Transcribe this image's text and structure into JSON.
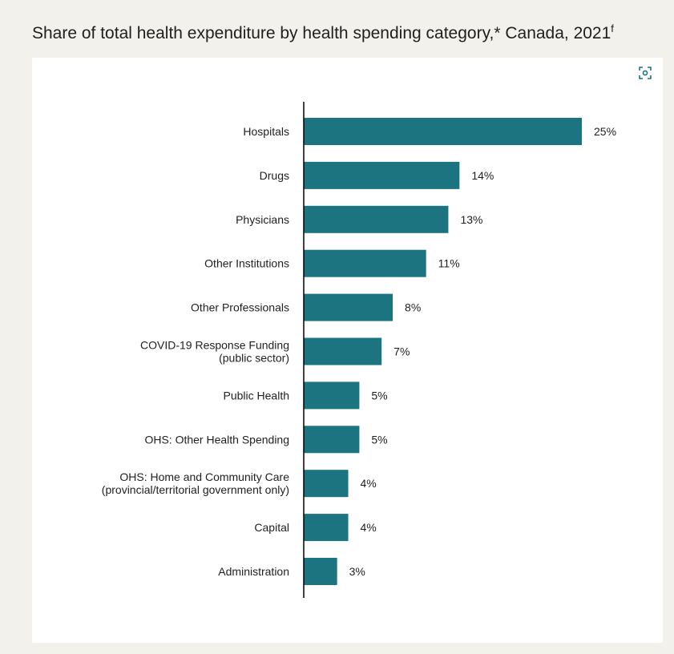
{
  "title": {
    "text": "Share of total health expenditure by health spending category,* Canada, 2021",
    "superscript": "f"
  },
  "icons": {
    "expand": "focus-expand-icon"
  },
  "colors": {
    "bar": "#1b7480",
    "background": "#f3f1ec",
    "panel": "#ffffff",
    "axis": "#000000"
  },
  "chart_data": {
    "type": "bar",
    "orientation": "horizontal",
    "categories": [
      [
        "Hospitals"
      ],
      [
        "Drugs"
      ],
      [
        "Physicians"
      ],
      [
        "Other Institutions"
      ],
      [
        "Other Professionals"
      ],
      [
        "COVID-19 Response Funding",
        "(public sector)"
      ],
      [
        "Public Health"
      ],
      [
        "OHS: Other Health Spending"
      ],
      [
        "OHS: Home and Community Care",
        "(provincial/territorial government only)"
      ],
      [
        "Capital"
      ],
      [
        "Administration"
      ]
    ],
    "values": [
      25,
      14,
      13,
      11,
      8,
      7,
      5,
      5,
      4,
      4,
      3
    ],
    "value_labels": [
      "25%",
      "14%",
      "13%",
      "11%",
      "8%",
      "7%",
      "5%",
      "5%",
      "4%",
      "4%",
      "3%"
    ],
    "xlim": [
      0,
      25
    ],
    "grid": false,
    "legend": "none"
  }
}
